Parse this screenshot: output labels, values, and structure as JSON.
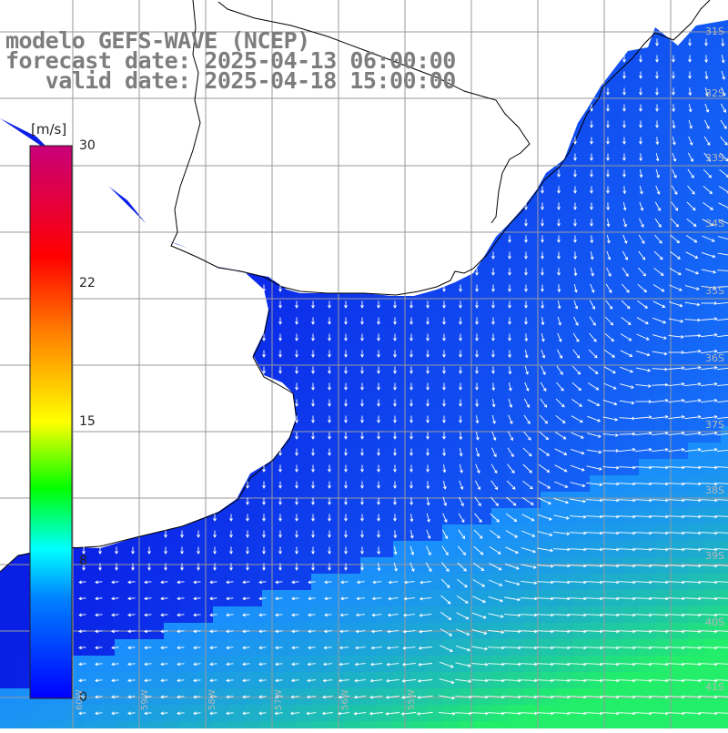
{
  "header": {
    "model_line": "modelo GEFS-WAVE (NCEP)",
    "forecast_line": "forecast date: 2025-04-13 06:00:00",
    "valid_line": "   valid date: 2025-04-18 15:00:00"
  },
  "colorbar": {
    "unit": "[m/s]",
    "ticks": [
      {
        "value": 30,
        "label": "30"
      },
      {
        "value": 22,
        "label": "22"
      },
      {
        "value": 15,
        "label": "15"
      },
      {
        "value": 8,
        "label": "8"
      },
      {
        "value": 0,
        "label": "0"
      }
    ],
    "colors": [
      "#0000ff",
      "#0080ff",
      "#00ffff",
      "#00ff00",
      "#ffff00",
      "#ff8000",
      "#ff0000",
      "#c8007a"
    ],
    "range": [
      0,
      30
    ]
  },
  "map": {
    "lat_labels": [
      "31S",
      "32S",
      "33S",
      "34S",
      "35S",
      "36S",
      "37S",
      "38S",
      "39S",
      "40S",
      "41S"
    ],
    "lon_labels": [
      "60W",
      "59W",
      "58W",
      "57W",
      "56W",
      "55W"
    ],
    "land_color": "#ffffff",
    "grid_color": "#9a9a9a",
    "coast_color": "#000000",
    "arrow_color": "#ffffff",
    "low_speed_color": "#0a1fe6",
    "high_speed_color": "#22ee6a"
  }
}
